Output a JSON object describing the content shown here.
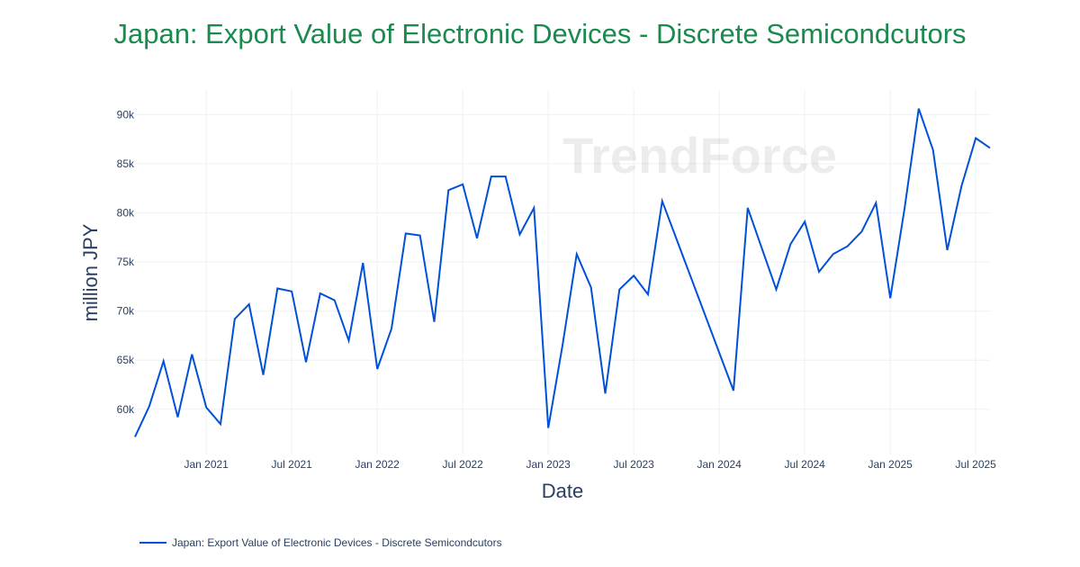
{
  "chart_data": {
    "type": "line",
    "title": "Japan: Export Value of Electronic Devices - Discrete Semicondcutors",
    "xlabel": "Date",
    "ylabel": "million JPY",
    "x_ticks": [
      "Jan 2021",
      "Jul 2021",
      "Jan 2022",
      "Jul 2022",
      "Jan 2023",
      "Jul 2023",
      "Jan 2024",
      "Jul 2024",
      "Jan 2025",
      "Jul 2025"
    ],
    "y_ticks": [
      "60k",
      "65k",
      "70k",
      "75k",
      "80k",
      "85k",
      "90k"
    ],
    "ylim": [
      55400,
      92500
    ],
    "xlim": [
      "2020-08",
      "2025-08"
    ],
    "grid": true,
    "legend_position": "bottom-left",
    "watermark": "TrendForce",
    "color": "#0050d8",
    "series": [
      {
        "name": "Japan: Export Value of Electronic Devices - Discrete Semicondcutors",
        "x": [
          "2020-08",
          "2020-09",
          "2020-10",
          "2020-11",
          "2020-12",
          "2021-01",
          "2021-02",
          "2021-03",
          "2021-04",
          "2021-05",
          "2021-06",
          "2021-07",
          "2021-08",
          "2021-09",
          "2021-10",
          "2021-11",
          "2021-12",
          "2022-01",
          "2022-02",
          "2022-03",
          "2022-04",
          "2022-05",
          "2022-06",
          "2022-07",
          "2022-08",
          "2022-09",
          "2022-10",
          "2022-11",
          "2022-12",
          "2023-01",
          "2023-02",
          "2023-03",
          "2023-04",
          "2023-05",
          "2023-06",
          "2023-07",
          "2023-08",
          "2023-09",
          "2024-02",
          "2024-03",
          "2024-05",
          "2024-06",
          "2024-07",
          "2024-08",
          "2024-09",
          "2024-10",
          "2024-11",
          "2024-12",
          "2025-01",
          "2025-02",
          "2025-03",
          "2025-04",
          "2025-05",
          "2025-06",
          "2025-07",
          "2025-08"
        ],
        "values": [
          57200,
          60300,
          64900,
          59200,
          65600,
          60200,
          58500,
          69200,
          70700,
          63500,
          72300,
          72000,
          64800,
          71800,
          71100,
          67000,
          74900,
          64100,
          68200,
          77900,
          77700,
          68900,
          82300,
          82900,
          77400,
          83700,
          83700,
          77800,
          80500,
          58100,
          66500,
          75800,
          72400,
          61600,
          72200,
          73600,
          71700,
          81200,
          61900,
          80500,
          72200,
          76800,
          79100,
          74000,
          75800,
          76600,
          78100,
          81000,
          71300,
          80400,
          90600,
          86400,
          76200,
          82700,
          87600,
          86600
        ]
      }
    ]
  }
}
